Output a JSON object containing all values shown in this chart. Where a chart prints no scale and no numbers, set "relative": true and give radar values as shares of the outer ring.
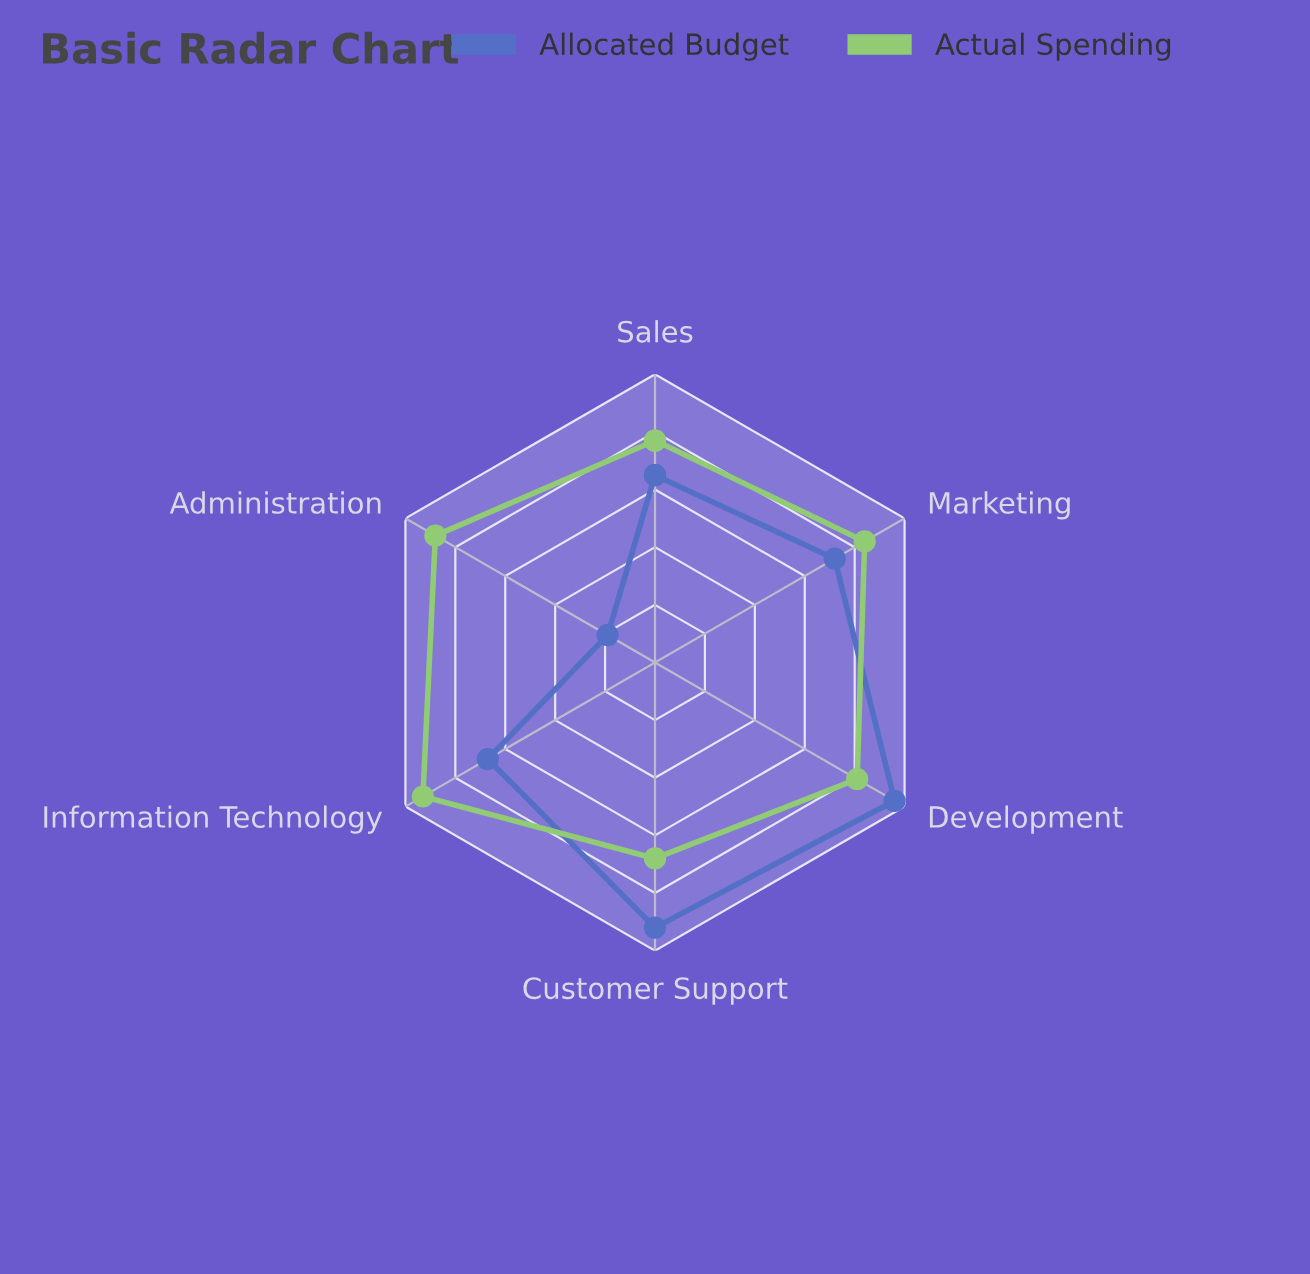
{
  "chart_data": {
    "type": "radar",
    "title": "Basic Radar Chart",
    "categories": [
      "Sales",
      "Marketing",
      "Development",
      "Customer Support",
      "Information Technology",
      "Administration"
    ],
    "relative": true,
    "legend": "top",
    "marker": "circle",
    "series": [
      {
        "name": "Allocated Budget",
        "color": "#5470c6",
        "values": [
          0.65,
          0.72,
          0.96,
          0.92,
          0.67,
          0.19
        ]
      },
      {
        "name": "Actual Spending",
        "color": "#91cc75",
        "values": [
          0.77,
          0.84,
          0.81,
          0.68,
          0.93,
          0.88
        ]
      }
    ]
  }
}
